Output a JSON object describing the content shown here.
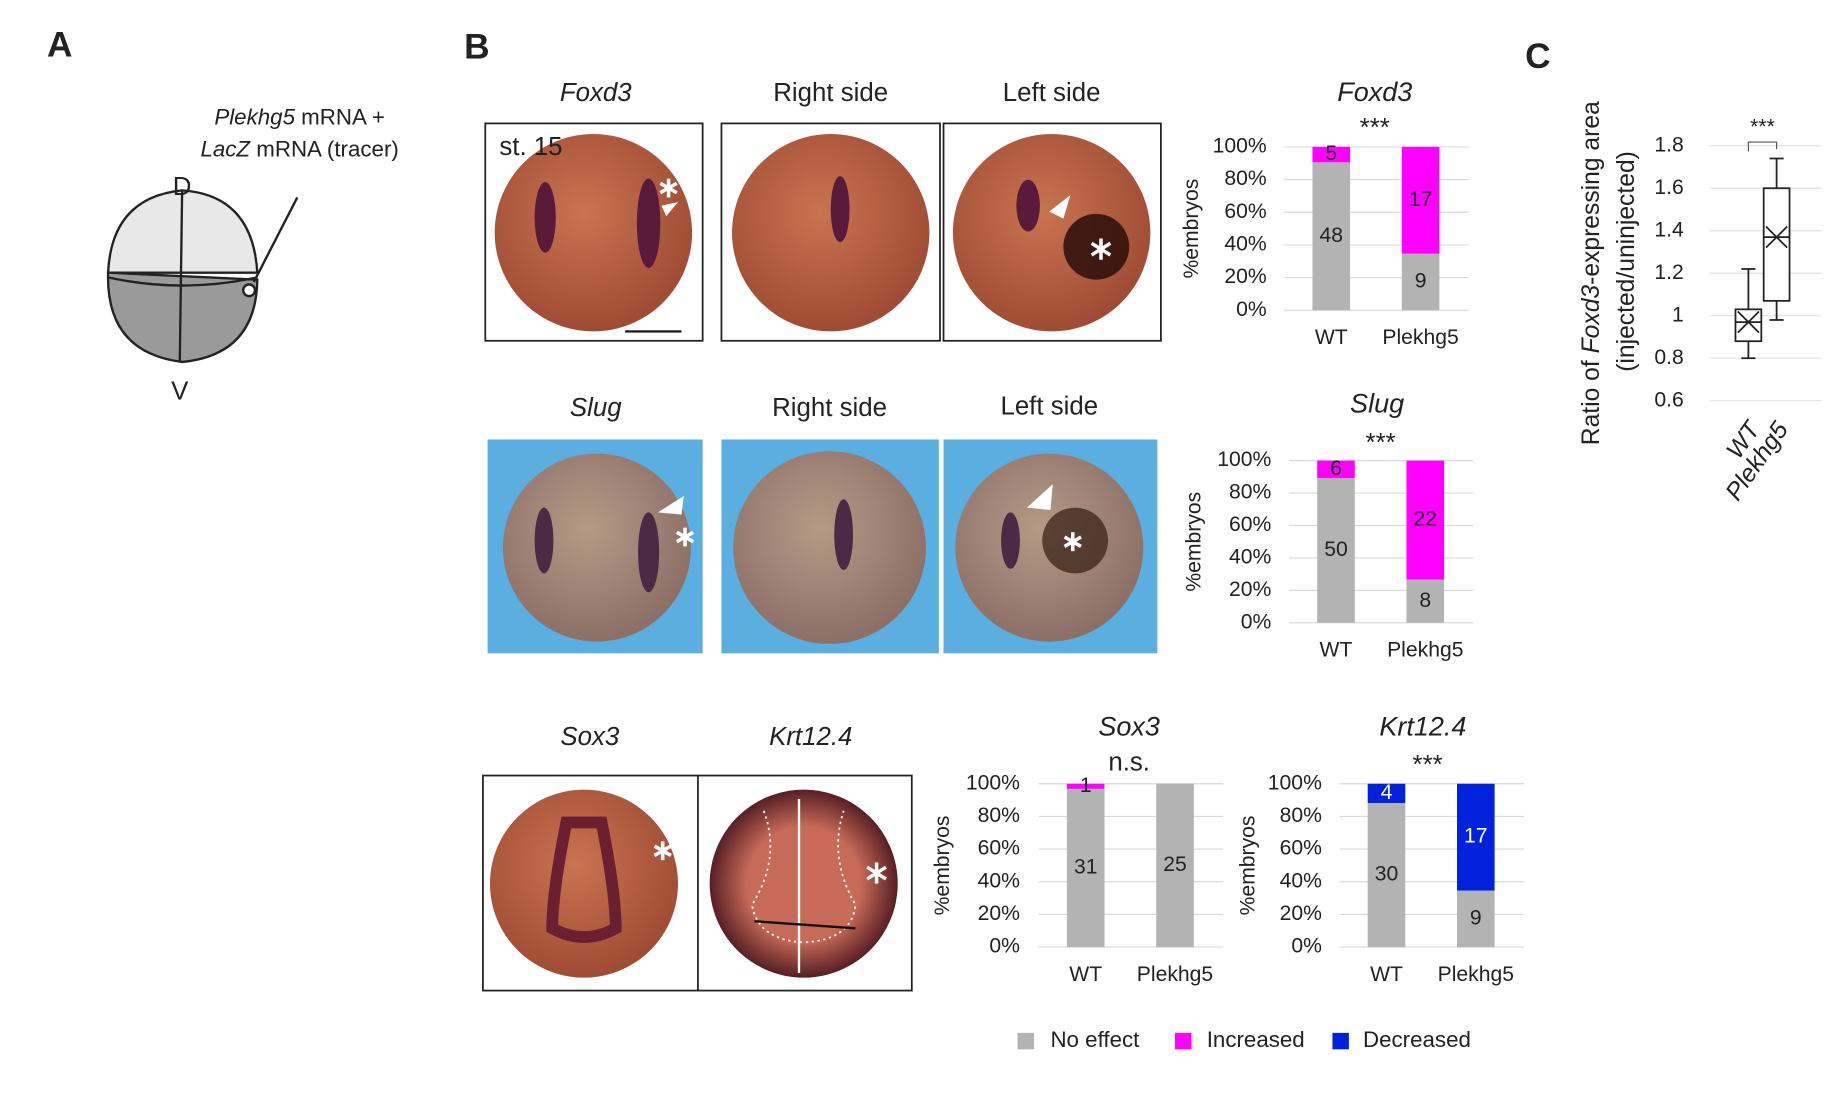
{
  "panels": {
    "a": {
      "label": "A",
      "injection": [
        "Plekhg5",
        " mRNA +",
        "LacZ",
        " mRNA (tracer)"
      ],
      "dorsal": "D",
      "ventral": "V"
    },
    "b": {
      "label": "B",
      "rows": [
        {
          "gene": "Foxd3",
          "right": "Right side",
          "left": "Left side",
          "stage": "st. 15"
        },
        {
          "gene": "Slug",
          "right": "Right side",
          "left": "Left side"
        },
        {
          "genes": [
            "Sox3",
            "Krt12.4"
          ]
        }
      ]
    },
    "c": {
      "label": "C"
    }
  },
  "chart_data": [
    {
      "type": "stacked_percent",
      "title": "Foxd3",
      "subtitle": "***",
      "ylabel": "%embryos",
      "categories": [
        "WT",
        "Plekhg5"
      ],
      "series": [
        {
          "name": "No effect",
          "color": "#b3b3b3",
          "label_color": "#222",
          "values": [
            48,
            9
          ]
        },
        {
          "name": "Increased",
          "color": "#ff00ff",
          "label_color": "#222",
          "values": [
            5,
            17
          ]
        }
      ],
      "ylim": [
        0,
        100
      ],
      "yticks": [
        {
          "value": 0,
          "label": "0%"
        },
        {
          "value": 20,
          "label": "20%"
        },
        {
          "value": 40,
          "label": "40%"
        },
        {
          "value": 60,
          "label": "60%"
        },
        {
          "value": 80,
          "label": "80%"
        },
        {
          "value": 100,
          "label": "100%"
        }
      ],
      "grid": true
    },
    {
      "type": "stacked_percent",
      "title": "Slug",
      "subtitle": "***",
      "ylabel": "%embryos",
      "categories": [
        "WT",
        "Plekhg5"
      ],
      "series": [
        {
          "name": "No effect",
          "color": "#b3b3b3",
          "label_color": "#222",
          "values": [
            50,
            8
          ]
        },
        {
          "name": "Increased",
          "color": "#ff00ff",
          "label_color": "#222",
          "values": [
            6,
            22
          ]
        }
      ],
      "ylim": [
        0,
        100
      ],
      "yticks": [
        {
          "value": 0,
          "label": "0%"
        },
        {
          "value": 20,
          "label": "20%"
        },
        {
          "value": 40,
          "label": "40%"
        },
        {
          "value": 60,
          "label": "60%"
        },
        {
          "value": 80,
          "label": "80%"
        },
        {
          "value": 100,
          "label": "100%"
        }
      ],
      "grid": true
    },
    {
      "type": "stacked_percent",
      "title": "Sox3",
      "subtitle": "n.s.",
      "ylabel": "%embryos",
      "categories": [
        "WT",
        "Plekhg5"
      ],
      "series": [
        {
          "name": "No effect",
          "color": "#b3b3b3",
          "label_color": "#222",
          "values": [
            31,
            25
          ]
        },
        {
          "name": "Increased",
          "color": "#ff00ff",
          "label_color": "#222",
          "values": [
            1,
            0
          ]
        }
      ],
      "ylim": [
        0,
        100
      ],
      "yticks": [
        {
          "value": 0,
          "label": "0%"
        },
        {
          "value": 20,
          "label": "20%"
        },
        {
          "value": 40,
          "label": "40%"
        },
        {
          "value": 60,
          "label": "60%"
        },
        {
          "value": 80,
          "label": "80%"
        },
        {
          "value": 100,
          "label": "100%"
        }
      ],
      "grid": true
    },
    {
      "type": "stacked_percent",
      "title": "Krt12.4",
      "subtitle": "***",
      "ylabel": "%embryos",
      "categories": [
        "WT",
        "Plekhg5"
      ],
      "series": [
        {
          "name": "No effect",
          "color": "#b3b3b3",
          "label_color": "#222",
          "values": [
            30,
            9
          ]
        },
        {
          "name": "Decreased",
          "color": "#0022dd",
          "label_color": "#fff",
          "values": [
            4,
            17
          ]
        }
      ],
      "ylim": [
        0,
        100
      ],
      "yticks": [
        {
          "value": 0,
          "label": "0%"
        },
        {
          "value": 20,
          "label": "20%"
        },
        {
          "value": 40,
          "label": "40%"
        },
        {
          "value": 60,
          "label": "60%"
        },
        {
          "value": 80,
          "label": "80%"
        },
        {
          "value": 100,
          "label": "100%"
        }
      ],
      "grid": true
    },
    {
      "type": "box",
      "ylabel": [
        "Ratio of ",
        "Foxd3",
        "-expressing area",
        "(injected/uninjected)"
      ],
      "significance": "***",
      "categories": [
        "WT",
        "Plekhg5"
      ],
      "min": [
        0.8,
        0.98
      ],
      "q1": [
        0.88,
        1.07
      ],
      "median": [
        0.97,
        1.37
      ],
      "q3": [
        1.03,
        1.6
      ],
      "max": [
        1.22,
        1.74
      ],
      "mean": [
        0.97,
        1.37
      ],
      "ylim": [
        0.55,
        1.85
      ],
      "yticks": [
        0.6,
        0.8,
        1,
        1.2,
        1.4,
        1.6,
        1.8
      ],
      "grid": true
    }
  ]
}
